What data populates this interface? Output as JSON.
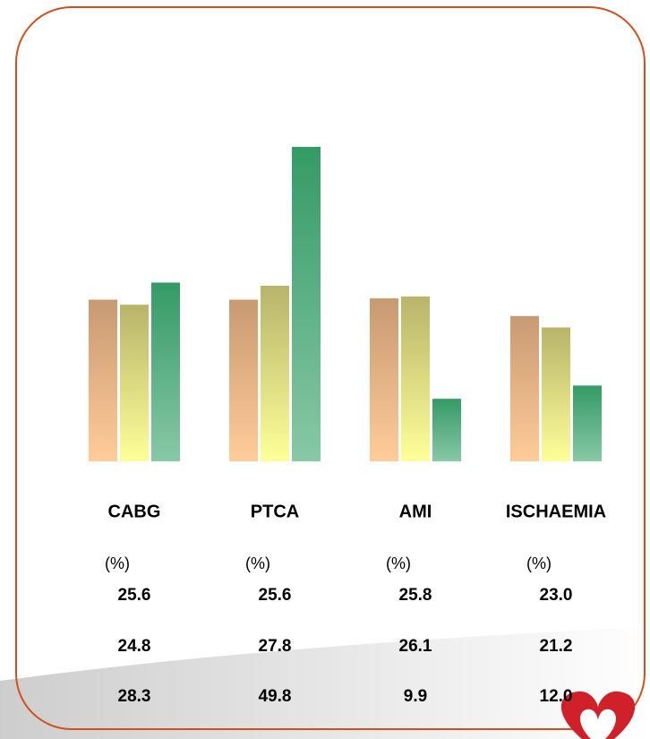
{
  "chart_data": {
    "type": "bar",
    "categories": [
      "CABG",
      "PTCA",
      "AMI",
      "ISCHAEMIA"
    ],
    "unit_label": "(%)",
    "series": [
      {
        "color": "#c89a72",
        "values": [
          25.6,
          25.6,
          25.8,
          23.0
        ],
        "value_labels": [
          "25.6",
          "25.6",
          "25.8",
          "23.0"
        ]
      },
      {
        "color": "#b8b46a",
        "values": [
          24.8,
          27.8,
          26.1,
          21.2
        ],
        "value_labels": [
          "24.8",
          "27.8",
          "26.1",
          "21.2"
        ]
      },
      {
        "color": "#359a66",
        "values": [
          28.3,
          49.8,
          9.9,
          12.0
        ],
        "value_labels": [
          "28.3",
          "49.8",
          "9.9",
          "12.0"
        ]
      }
    ]
  }
}
